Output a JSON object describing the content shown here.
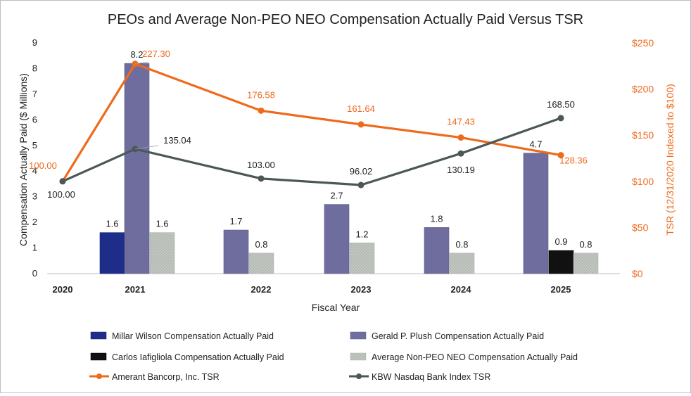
{
  "chart_data": {
    "type": "bar",
    "title": "PEOs and Average Non-PEO NEO Compensation Actually Paid Versus TSR",
    "xlabel": "Fiscal Year",
    "ylabel": "Compensation Actually Paid ($ Millions)",
    "ylabel_right": "TSR (12/31/2020 Indexed to $100)",
    "ylim": [
      0,
      9
    ],
    "ylim_right": [
      0,
      250
    ],
    "yticks": [
      "0",
      "1",
      "2",
      "3",
      "4",
      "5",
      "6",
      "7",
      "8",
      "9"
    ],
    "yticks_right": [
      "$0",
      "$50",
      "$100",
      "$150",
      "$200",
      "$250"
    ],
    "categories": [
      "2020",
      "2021",
      "2022",
      "2023",
      "2024",
      "2025"
    ],
    "bar_series": [
      {
        "name": "Millar Wilson Compensation Actually Paid",
        "color": "#1f2d8a",
        "values": [
          null,
          1.6,
          null,
          null,
          null,
          null
        ],
        "labels": [
          "",
          "1.6",
          "",
          "",
          "",
          ""
        ]
      },
      {
        "name": "Gerald P. Plush Compensation Actually Paid",
        "color": "#6f6d9e",
        "values": [
          null,
          8.2,
          1.7,
          2.7,
          1.8,
          4.7
        ],
        "labels": [
          "",
          "8.2",
          "1.7",
          "2.7",
          "1.8",
          "4.7"
        ]
      },
      {
        "name": "Carlos Iafigliola Compensation Actually Paid",
        "color": "#111111",
        "values": [
          null,
          null,
          null,
          null,
          null,
          0.9
        ],
        "labels": [
          "",
          "",
          "",
          "",
          "",
          "0.9"
        ]
      },
      {
        "name": "Average Non-PEO NEO Compensation Actually Paid",
        "color": "#bfc3bd",
        "values": [
          null,
          1.6,
          0.8,
          1.2,
          0.8,
          0.8
        ],
        "labels": [
          "",
          "1.6",
          "0.8",
          "1.2",
          "0.8",
          "0.8"
        ]
      }
    ],
    "line_series": [
      {
        "name": "Amerant Bancorp, Inc. TSR",
        "color": "#ee6a1c",
        "values": [
          100.0,
          227.3,
          176.58,
          161.64,
          147.43,
          128.36
        ],
        "labels": [
          "100.00",
          "227.30",
          "176.58",
          "161.64",
          "147.43",
          "128.36"
        ]
      },
      {
        "name": "KBW Nasdaq Bank Index TSR",
        "color": "#4a5856",
        "values": [
          100.0,
          135.04,
          103.0,
          96.02,
          130.19,
          168.5
        ],
        "labels": [
          "100.00",
          "135.04",
          "103.00",
          "96.02",
          "130.19",
          "168.50"
        ]
      }
    ],
    "legend": [
      "Millar Wilson Compensation Actually Paid",
      "Gerald P. Plush Compensation Actually Paid",
      "Carlos Iafigliola Compensation Actually Paid",
      "Average Non-PEO NEO Compensation Actually Paid",
      "Amerant Bancorp, Inc. TSR",
      "KBW Nasdaq Bank Index TSR"
    ],
    "legend_position": "bottom"
  }
}
